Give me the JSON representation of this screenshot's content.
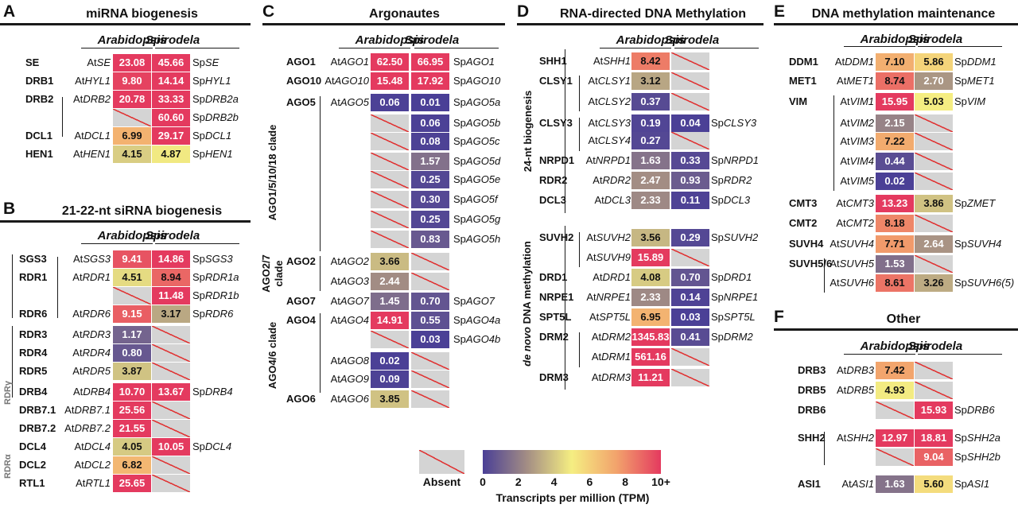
{
  "legend": {
    "absent_label": "Absent",
    "ticks": [
      "0",
      "2",
      "4",
      "6",
      "8",
      "10+"
    ],
    "title": "Transcripts per million (TPM)",
    "scale_stops": [
      "#4a3f96",
      "#a48e84",
      "#f5ee82",
      "#f2a36c",
      "#e43a5f"
    ],
    "absent_color": "#d4d4d4",
    "absent_line_color": "#e03535"
  },
  "col_headers": {
    "arabidopsis": "Arabidopsis",
    "spirodela": "Spirodela"
  },
  "panels": {
    "A": {
      "label": "A",
      "title": "miRNA biogenesis"
    },
    "B": {
      "label": "B",
      "title": "21-22-nt siRNA biogenesis",
      "brackets": {
        "rdr_gamma": "RDRγ",
        "rdr_alpha": "RDRα"
      }
    },
    "C": {
      "label": "C",
      "title": "Argonautes",
      "clades": {
        "ago1": "AGO1/5/10/18 clade",
        "ago2a": "AGO2/7",
        "ago2b": "clade",
        "ago4": "AGO4/6 clade"
      }
    },
    "D": {
      "label": "D",
      "title": "RNA-directed DNA Methylation",
      "groups": {
        "biogenesis": "24-nt biogenesis",
        "denovo_a": "de novo",
        "denovo_b": " DNA methylation"
      }
    },
    "E": {
      "label": "E",
      "title": "DNA methylation maintenance"
    },
    "F": {
      "label": "F",
      "title": "Other"
    }
  },
  "rows": {
    "A": [
      {
        "name": "SE",
        "at": "SE",
        "av": "23.08",
        "sv": "45.66",
        "sp": "SE"
      },
      {
        "name": "DRB1",
        "at": "HYL1",
        "av": "9.80",
        "sv": "14.14",
        "sp": "HYL1"
      },
      {
        "name": "DRB2",
        "at": "DRB2",
        "av": "20.78",
        "sv": "33.33",
        "sp": "DRB2a"
      },
      {
        "name": "",
        "at": "",
        "av": null,
        "sv": "60.60",
        "sp": "DRB2b"
      },
      {
        "name": "DCL1",
        "at": "DCL1",
        "av": "6.99",
        "sv": "29.17",
        "sp": "DCL1"
      },
      {
        "name": "HEN1",
        "at": "HEN1",
        "av": "4.15",
        "sv": "4.87",
        "sp": "HEN1"
      }
    ],
    "B": [
      {
        "name": "SGS3",
        "at": "SGS3",
        "av": "9.41",
        "sv": "14.86",
        "sp": "SGS3"
      },
      {
        "name": "RDR1",
        "at": "RDR1",
        "av": "4.51",
        "sv": "8.94",
        "sp": "RDR1a"
      },
      {
        "name": "",
        "at": "",
        "av": null,
        "sv": "11.48",
        "sp": "RDR1b"
      },
      {
        "name": "RDR6",
        "at": "RDR6",
        "av": "9.15",
        "sv": "3.17",
        "sp": "RDR6"
      },
      {
        "name": "RDR3",
        "at": "RDR3",
        "av": "1.17",
        "sv": null,
        "sp": ""
      },
      {
        "name": "RDR4",
        "at": "RDR4",
        "av": "0.80",
        "sv": null,
        "sp": ""
      },
      {
        "name": "RDR5",
        "at": "RDR5",
        "av": "3.87",
        "sv": null,
        "sp": ""
      },
      {
        "name": "DRB4",
        "at": "DRB4",
        "av": "10.70",
        "sv": "13.67",
        "sp": "DRB4"
      },
      {
        "name": "DRB7.1",
        "at": "DRB7.1",
        "av": "25.56",
        "sv": null,
        "sp": ""
      },
      {
        "name": "DRB7.2",
        "at": "DRB7.2",
        "av": "21.55",
        "sv": null,
        "sp": ""
      },
      {
        "name": "DCL4",
        "at": "DCL4",
        "av": "4.05",
        "sv": "10.05",
        "sp": "DCL4"
      },
      {
        "name": "DCL2",
        "at": "DCL2",
        "av": "6.82",
        "sv": null,
        "sp": ""
      },
      {
        "name": "RTL1",
        "at": "RTL1",
        "av": "25.65",
        "sv": null,
        "sp": ""
      }
    ],
    "C": [
      {
        "name": "AGO1",
        "at": "AGO1",
        "av": "62.50",
        "sv": "66.95",
        "sp": "AGO1"
      },
      {
        "name": "AGO10",
        "at": "AGO10",
        "av": "15.48",
        "sv": "17.92",
        "sp": "AGO10"
      },
      {
        "name": "AGO5",
        "at": "AGO5",
        "av": "0.06",
        "sv": "0.01",
        "sp": "AGO5a"
      },
      {
        "name": "",
        "at": "",
        "av": null,
        "sv": "0.06",
        "sp": "AGO5b"
      },
      {
        "name": "",
        "at": "",
        "av": null,
        "sv": "0.08",
        "sp": "AGO5c"
      },
      {
        "name": "",
        "at": "",
        "av": null,
        "sv": "1.57",
        "sp": "AGO5d"
      },
      {
        "name": "",
        "at": "",
        "av": null,
        "sv": "0.25",
        "sp": "AGO5e"
      },
      {
        "name": "",
        "at": "",
        "av": null,
        "sv": "0.30",
        "sp": "AGO5f"
      },
      {
        "name": "",
        "at": "",
        "av": null,
        "sv": "0.25",
        "sp": "AGO5g"
      },
      {
        "name": "",
        "at": "",
        "av": null,
        "sv": "0.83",
        "sp": "AGO5h"
      },
      {
        "name": "AGO2",
        "at": "AGO2",
        "av": "3.66",
        "sv": null,
        "sp": ""
      },
      {
        "name": "",
        "at": "AGO3",
        "av": "2.44",
        "sv": null,
        "sp": ""
      },
      {
        "name": "AGO7",
        "at": "AGO7",
        "av": "1.45",
        "sv": "0.70",
        "sp": "AGO7"
      },
      {
        "name": "AGO4",
        "at": "AGO4",
        "av": "14.91",
        "sv": "0.55",
        "sp": "AGO4a"
      },
      {
        "name": "",
        "at": "",
        "av": null,
        "sv": "0.03",
        "sp": "AGO4b"
      },
      {
        "name": "",
        "at": "AGO8",
        "av": "0.02",
        "sv": null,
        "sp": ""
      },
      {
        "name": "",
        "at": "AGO9",
        "av": "0.09",
        "sv": null,
        "sp": ""
      },
      {
        "name": "AGO6",
        "at": "AGO6",
        "av": "3.85",
        "sv": null,
        "sp": ""
      }
    ],
    "D": [
      {
        "name": "SHH1",
        "at": "SHH1",
        "av": "8.42",
        "sv": null,
        "sp": ""
      },
      {
        "name": "CLSY1",
        "at": "CLSY1",
        "av": "3.12",
        "sv": null,
        "sp": ""
      },
      {
        "name": "",
        "at": "CLSY2",
        "av": "0.37",
        "sv": null,
        "sp": ""
      },
      {
        "name": "CLSY3",
        "at": "CLSY3",
        "av": "0.19",
        "sv": "0.04",
        "sp": "CLSY3"
      },
      {
        "name": "",
        "at": "CLSY4",
        "av": "0.27",
        "sv": null,
        "sp": ""
      },
      {
        "name": "NRPD1",
        "at": "NRPD1",
        "av": "1.63",
        "sv": "0.33",
        "sp": "NRPD1"
      },
      {
        "name": "RDR2",
        "at": "RDR2",
        "av": "2.47",
        "sv": "0.93",
        "sp": "RDR2"
      },
      {
        "name": "DCL3",
        "at": "DCL3",
        "av": "2.33",
        "sv": "0.11",
        "sp": "DCL3"
      },
      {
        "name": "SUVH2",
        "at": "SUVH2",
        "av": "3.56",
        "sv": "0.29",
        "sp": "SUVH2"
      },
      {
        "name": "",
        "at": "SUVH9",
        "av": "15.89",
        "sv": null,
        "sp": ""
      },
      {
        "name": "DRD1",
        "at": "DRD1",
        "av": "4.08",
        "sv": "0.70",
        "sp": "DRD1"
      },
      {
        "name": "NRPE1",
        "at": "NRPE1",
        "av": "2.33",
        "sv": "0.14",
        "sp": "NRPE1"
      },
      {
        "name": "SPT5L",
        "at": "SPT5L",
        "av": "6.95",
        "sv": "0.03",
        "sp": "SPT5L"
      },
      {
        "name": "DRM2",
        "at": "DRM2",
        "av": "1345.83",
        "sv": "0.41",
        "sp": "DRM2"
      },
      {
        "name": "",
        "at": "DRM1",
        "av": "561.16",
        "sv": null,
        "sp": ""
      },
      {
        "name": "DRM3",
        "at": "DRM3",
        "av": "11.21",
        "sv": null,
        "sp": ""
      }
    ],
    "E": [
      {
        "name": "DDM1",
        "at": "DDM1",
        "av": "7.10",
        "sv": "5.86",
        "sp": "DDM1"
      },
      {
        "name": "MET1",
        "at": "MET1",
        "av": "8.74",
        "sv": "2.70",
        "sp": "MET1"
      },
      {
        "name": "VIM",
        "at": "VIM1",
        "av": "15.95",
        "sv": "5.03",
        "sp": "VIM"
      },
      {
        "name": "",
        "at": "VIM2",
        "av": "2.15",
        "sv": null,
        "sp": ""
      },
      {
        "name": "",
        "at": "VIM3",
        "av": "7.22",
        "sv": null,
        "sp": ""
      },
      {
        "name": "",
        "at": "VIM4",
        "av": "0.44",
        "sv": null,
        "sp": ""
      },
      {
        "name": "",
        "at": "VIM5",
        "av": "0.02",
        "sv": null,
        "sp": ""
      },
      {
        "name": "CMT3",
        "at": "CMT3",
        "av": "13.23",
        "sv": "3.86",
        "sp": "ZMET"
      },
      {
        "name": "CMT2",
        "at": "CMT2",
        "av": "8.18",
        "sv": null,
        "sp": ""
      },
      {
        "name": "SUVH4",
        "at": "SUVH4",
        "av": "7.71",
        "sv": "2.64",
        "sp": "SUVH4"
      },
      {
        "name": "SUVH5/6",
        "at": "SUVH5",
        "av": "1.53",
        "sv": null,
        "sp": ""
      },
      {
        "name": "",
        "at": "SUVH6",
        "av": "8.61",
        "sv": "3.26",
        "sp": "SUVH6(5)"
      }
    ],
    "F": [
      {
        "name": "DRB3",
        "at": "DRB3",
        "av": "7.42",
        "sv": null,
        "sp": ""
      },
      {
        "name": "DRB5",
        "at": "DRB5",
        "av": "4.93",
        "sv": null,
        "sp": ""
      },
      {
        "name": "DRB6",
        "at": "",
        "av": null,
        "sv": "15.93",
        "sp": "DRB6"
      },
      {
        "name": "SHH2",
        "at": "SHH2",
        "av": "12.97",
        "sv": "18.81",
        "sp": "SHH2a"
      },
      {
        "name": "",
        "at": "",
        "av": null,
        "sv": "9.04",
        "sp": "SHH2b"
      },
      {
        "name": "ASI1",
        "at": "ASI1",
        "av": "1.63",
        "sv": "5.60",
        "sp": "ASI1"
      }
    ]
  }
}
